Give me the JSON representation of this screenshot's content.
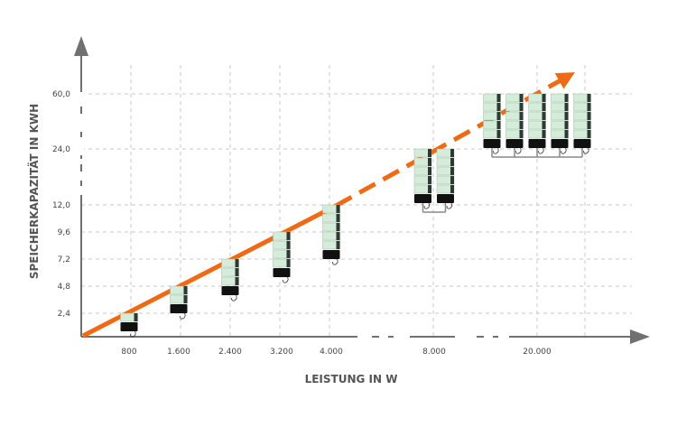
{
  "chart_data": {
    "type": "bar",
    "title": "",
    "xlabel": "LEISTUNG IN W",
    "ylabel": "SPEICHERKAPAZITÄT  IN KWH",
    "categories": [
      "800",
      "1.600",
      "2.400",
      "3.200",
      "4.000",
      "8.000",
      "20.000"
    ],
    "x_values_w": [
      800,
      1600,
      2400,
      3200,
      4000,
      8000,
      20000
    ],
    "values": [
      2.4,
      4.8,
      7.2,
      9.6,
      12.0,
      24.0,
      60.0
    ],
    "y_ticks": [
      "2,4",
      "4,8",
      "7,2",
      "9,6",
      "12,0",
      "24,0",
      "60,0"
    ],
    "units_per_category": [
      1,
      1,
      1,
      1,
      1,
      2,
      5
    ],
    "modules_per_unit": [
      1,
      2,
      3,
      4,
      5,
      5,
      5
    ],
    "x_axis_broken": true,
    "y_axis_broken": true,
    "grid": true,
    "colors": {
      "axis": "#707070",
      "arrow": "#ef6a12",
      "grid": "#c8c8c8",
      "module_light": "#d4ecd9",
      "module_dark": "#2c3a33",
      "base": "#111111"
    }
  }
}
